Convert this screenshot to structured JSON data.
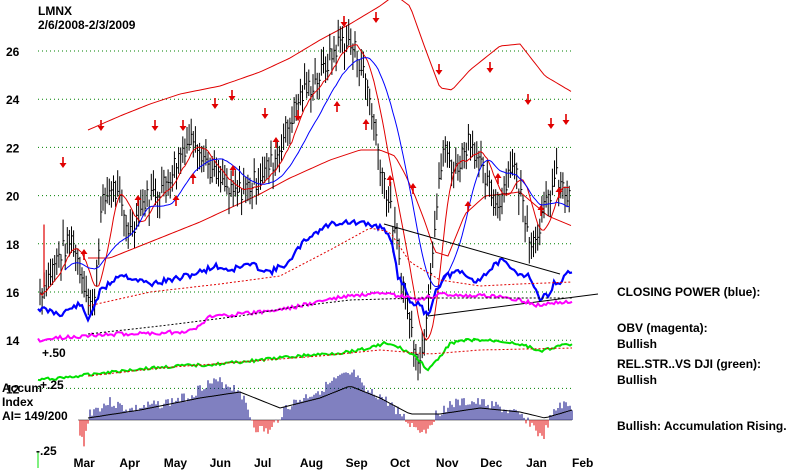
{
  "header": {
    "ticker": "LMNX",
    "range": "2/6/2008-2/3/2009"
  },
  "notes": {
    "closing_power": "CLOSING POWER (blue):",
    "obv_label": "OBV (magenta):",
    "obv_state": "Bullish",
    "relstr_label": "REL.STR..VS DJI (green):",
    "relstr_state": "Bullish",
    "bullish_note": "Bullish: Accumulation Rising."
  },
  "indicator_labels": {
    "p50": "+.50",
    "p25": "+.25",
    "accum": "Accum",
    "index": "Index",
    "ai": "AI= 149/200",
    "m25": "-.25"
  },
  "colors": {
    "price": "#000000",
    "band": "#e00000",
    "ma_red": "#e00000",
    "ma_blue": "#0000ff",
    "closing_power": "#0000ff",
    "obv": "#ff00ff",
    "relstr": "#00e000",
    "accum": "#000080",
    "accum_neg": "#e00000",
    "arrow": "#e00000",
    "grid": "#008000"
  },
  "chart_data": {
    "type": "line",
    "title": "LMNX",
    "subtitle": "2/6/2008-2/3/2009",
    "x_ticks": [
      "Mar",
      "Apr",
      "May",
      "Jun",
      "Jul",
      "Aug",
      "Sep",
      "Oct",
      "Nov",
      "Dec",
      "Jan",
      "Feb"
    ],
    "y_ticks": [
      12,
      14,
      16,
      18,
      20,
      22,
      24,
      26
    ],
    "ylim": [
      11,
      27.5
    ],
    "grid": true,
    "price_close_keypoints": [
      [
        "2008-02-06",
        15.8
      ],
      [
        "2008-02-20",
        17.5
      ],
      [
        "2008-02-29",
        18.2
      ],
      [
        "2008-03-10",
        16.0
      ],
      [
        "2008-03-14",
        15.2
      ],
      [
        "2008-03-20",
        19.5
      ],
      [
        "2008-03-27",
        20.5
      ],
      [
        "2008-04-08",
        18.5
      ],
      [
        "2008-04-18",
        19.8
      ],
      [
        "2008-05-02",
        20.5
      ],
      [
        "2008-05-14",
        22.0
      ],
      [
        "2008-05-22",
        22.5
      ],
      [
        "2008-06-02",
        21.0
      ],
      [
        "2008-06-16",
        20.0
      ],
      [
        "2008-06-30",
        20.5
      ],
      [
        "2008-07-15",
        21.5
      ],
      [
        "2008-07-31",
        24.0
      ],
      [
        "2008-08-15",
        25.0
      ],
      [
        "2008-08-29",
        26.5
      ],
      [
        "2008-09-08",
        26.0
      ],
      [
        "2008-09-16",
        24.5
      ],
      [
        "2008-09-24",
        21.5
      ],
      [
        "2008-10-01",
        19.5
      ],
      [
        "2008-10-08",
        17.0
      ],
      [
        "2008-10-15",
        14.5
      ],
      [
        "2008-10-22",
        13.0
      ],
      [
        "2008-10-29",
        17.5
      ],
      [
        "2008-11-06",
        22.0
      ],
      [
        "2008-11-14",
        21.0
      ],
      [
        "2008-11-24",
        22.5
      ],
      [
        "2008-12-02",
        21.0
      ],
      [
        "2008-12-12",
        19.5
      ],
      [
        "2008-12-23",
        21.5
      ],
      [
        "2009-01-05",
        18.0
      ],
      [
        "2009-01-14",
        19.5
      ],
      [
        "2009-01-21",
        20.8
      ],
      [
        "2009-01-30",
        19.8
      ]
    ],
    "indicators": {
      "accum_index_range": [
        -0.25,
        0.5
      ],
      "accum_index_value": "AI= 149/200"
    }
  }
}
